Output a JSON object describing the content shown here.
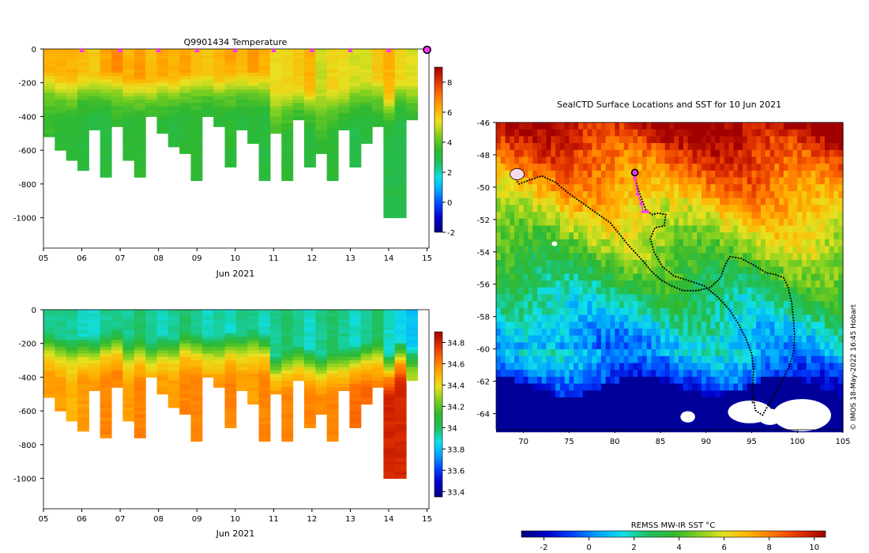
{
  "colors": {
    "jet": [
      "#00007f",
      "#0000c8",
      "#0040ff",
      "#00a0ff",
      "#10e0e8",
      "#20c060",
      "#30b830",
      "#80d020",
      "#e8e020",
      "#ffb000",
      "#ff7000",
      "#e03000",
      "#a00000"
    ],
    "float_marker": "#ff30ff",
    "track": "#000000",
    "land": "#ffffff"
  },
  "chart_data": [
    {
      "id": "temperature",
      "type": "heatmap",
      "title": "Q9901434  Temperature",
      "xlabel": "Jun 2021",
      "ylabel": "",
      "xlim": [
        5,
        15.05
      ],
      "ylim": [
        -1180,
        0
      ],
      "xticks": [
        "05",
        "06",
        "07",
        "08",
        "09",
        "10",
        "11",
        "12",
        "13",
        "14",
        "15"
      ],
      "yticks": [
        0,
        -200,
        -400,
        -600,
        -800,
        -1000
      ],
      "colorbar": {
        "range": [
          -2,
          9
        ],
        "ticks": [
          -2,
          0,
          2,
          4,
          6,
          8
        ]
      },
      "profile_markers_x": [
        6,
        7,
        8,
        9,
        10,
        11,
        12,
        13,
        14
      ],
      "last_marker_x": 15,
      "surface": [
        6.2,
        6.2,
        6.2,
        6.0,
        5.8,
        6.4,
        6.8,
        6.2,
        6.6,
        6.0,
        6.4,
        6.2,
        6.5,
        6.0,
        5.8,
        6.2,
        6.4,
        6.0,
        6.6,
        6.2,
        5.4,
        5.6,
        5.8,
        6.2,
        5.0,
        5.6,
        5.4,
        5.2,
        5.2,
        5.8,
        6.2,
        5.6,
        5.2
      ],
      "deep": [
        3.6,
        3.4,
        3.4,
        3.2,
        3.0,
        3.2,
        3.6,
        3.4,
        3.4,
        3.2,
        3.4,
        3.2,
        3.4,
        3.4,
        3.2,
        3.2,
        3.4,
        3.2,
        3.4,
        3.2,
        3.6,
        3.4,
        3.2,
        3.2,
        3.6,
        3.4,
        3.2,
        3.0,
        3.2,
        3.4,
        3.0,
        3.0,
        3.2
      ],
      "mixed_depth": [
        120,
        150,
        160,
        140,
        150,
        130,
        110,
        170,
        150,
        180,
        140,
        160,
        120,
        130,
        140,
        150,
        120,
        130,
        110,
        130,
        260,
        230,
        200,
        220,
        260,
        230,
        220,
        200,
        180,
        160,
        250,
        170,
        200
      ],
      "profile_depth": [
        520,
        600,
        660,
        720,
        480,
        760,
        450,
        650,
        760,
        400,
        490,
        580,
        620,
        780,
        400,
        460,
        700,
        480,
        560,
        780,
        500,
        770,
        420,
        690,
        620,
        770,
        470,
        700,
        560,
        460,
        1000,
        1000,
        410
      ]
    },
    {
      "id": "salinity",
      "type": "heatmap",
      "title": "",
      "xlabel": "Jun 2021",
      "ylabel": "",
      "xlim": [
        5,
        15.05
      ],
      "ylim": [
        -1180,
        0
      ],
      "xticks": [
        "05",
        "06",
        "07",
        "08",
        "09",
        "10",
        "11",
        "12",
        "13",
        "14",
        "15"
      ],
      "yticks": [
        0,
        -200,
        -400,
        -600,
        -800,
        -1000
      ],
      "colorbar": {
        "range": [
          33.35,
          34.9
        ],
        "ticks": [
          33.4,
          33.6,
          33.8,
          34,
          34.2,
          34.4,
          34.6,
          34.8
        ]
      },
      "surface": [
        33.95,
        33.95,
        33.95,
        33.9,
        33.9,
        33.95,
        33.95,
        33.95,
        34.0,
        33.95,
        33.9,
        33.95,
        34.0,
        33.95,
        33.9,
        33.95,
        33.9,
        33.95,
        33.95,
        33.9,
        33.95,
        34.0,
        33.95,
        33.9,
        33.95,
        34.0,
        33.95,
        33.9,
        33.95,
        34.0,
        33.9,
        33.85,
        33.8
      ],
      "deep": [
        34.55,
        34.55,
        34.5,
        34.55,
        34.55,
        34.6,
        34.6,
        34.55,
        34.6,
        34.55,
        34.55,
        34.55,
        34.6,
        34.6,
        34.55,
        34.55,
        34.6,
        34.55,
        34.55,
        34.6,
        34.6,
        34.6,
        34.6,
        34.6,
        34.6,
        34.6,
        34.6,
        34.65,
        34.65,
        34.6,
        34.8,
        34.8,
        34.4
      ],
      "mixed_depth": [
        120,
        150,
        160,
        140,
        150,
        130,
        110,
        170,
        150,
        180,
        140,
        160,
        120,
        130,
        140,
        150,
        120,
        130,
        110,
        130,
        260,
        230,
        200,
        220,
        260,
        230,
        220,
        200,
        180,
        160,
        250,
        170,
        200
      ],
      "profile_depth": [
        520,
        600,
        660,
        720,
        480,
        760,
        450,
        650,
        760,
        400,
        490,
        580,
        620,
        780,
        400,
        460,
        700,
        480,
        560,
        780,
        500,
        770,
        420,
        690,
        620,
        770,
        470,
        700,
        560,
        460,
        1000,
        1000,
        410
      ]
    },
    {
      "id": "sst_map",
      "type": "heatmap",
      "title": "SealCTD Surface Locations and SST for 10 Jun 2021",
      "xlabel": "",
      "ylabel": "",
      "xlim": [
        67,
        105
      ],
      "ylim": [
        -65,
        -46
      ],
      "xticks": [
        70,
        75,
        80,
        85,
        90,
        95,
        100,
        105
      ],
      "yticks": [
        -46,
        -48,
        -50,
        -52,
        -54,
        -56,
        -58,
        -60,
        -62,
        -64
      ],
      "colorbar": {
        "label": "REMSS MW-IR SST °C",
        "range": [
          -3,
          10.5
        ],
        "ticks": [
          -2,
          0,
          2,
          4,
          6,
          8,
          10
        ]
      },
      "credit": "© IMOS 18-May-2022 16:45 Hobart",
      "track": [
        [
          68.8,
          -49.2
        ],
        [
          69.5,
          -49.8
        ],
        [
          70.5,
          -49.6
        ],
        [
          72,
          -49.3
        ],
        [
          73.5,
          -49.7
        ],
        [
          75,
          -50.4
        ],
        [
          76.5,
          -51
        ],
        [
          78,
          -51.6
        ],
        [
          79.5,
          -52.2
        ],
        [
          80.5,
          -52.9
        ],
        [
          81.5,
          -53.6
        ],
        [
          82.5,
          -54.2
        ],
        [
          83.3,
          -54.7
        ],
        [
          84,
          -55.2
        ],
        [
          85,
          -55.7
        ],
        [
          86.2,
          -56.1
        ],
        [
          87.5,
          -56.4
        ],
        [
          89,
          -56.4
        ],
        [
          90.5,
          -56.2
        ],
        [
          91.6,
          -55.6
        ],
        [
          92.1,
          -54.8
        ],
        [
          92.6,
          -54.3
        ],
        [
          93.8,
          -54.4
        ],
        [
          95.2,
          -54.8
        ],
        [
          96.6,
          -55.3
        ],
        [
          97.6,
          -55.4
        ],
        [
          98.5,
          -55.6
        ],
        [
          99,
          -56.2
        ],
        [
          99.4,
          -57.2
        ],
        [
          99.6,
          -58.3
        ],
        [
          99.7,
          -59.2
        ],
        [
          99.6,
          -60.2
        ],
        [
          99.1,
          -61.1
        ],
        [
          98.3,
          -62
        ],
        [
          97.6,
          -62.7
        ],
        [
          96.8,
          -63.5
        ],
        [
          96.2,
          -64.1
        ],
        [
          95.4,
          -63.8
        ],
        [
          95.2,
          -63
        ]
      ],
      "track2": [
        [
          82.2,
          -49.4
        ],
        [
          82.6,
          -50.2
        ],
        [
          83,
          -50.8
        ],
        [
          83.4,
          -51.4
        ],
        [
          84.1,
          -51.7
        ],
        [
          84.8,
          -51.6
        ],
        [
          85.6,
          -51.7
        ],
        [
          85.4,
          -52.4
        ],
        [
          84.4,
          -52.5
        ],
        [
          83.9,
          -53.2
        ],
        [
          84.3,
          -54
        ],
        [
          85.2,
          -54.9
        ],
        [
          86.5,
          -55.5
        ],
        [
          88.2,
          -55.8
        ],
        [
          89.8,
          -56.1
        ],
        [
          91.3,
          -56.8
        ],
        [
          92.6,
          -57.6
        ],
        [
          93.6,
          -58.5
        ],
        [
          94.4,
          -59.4
        ],
        [
          95,
          -60.3
        ],
        [
          95.2,
          -61.3
        ],
        [
          95.1,
          -62.3
        ],
        [
          95.1,
          -63.4
        ]
      ],
      "recent": [
        [
          82.2,
          -49.4
        ],
        [
          82.5,
          -50.4
        ],
        [
          82.9,
          -51
        ],
        [
          83.1,
          -51.5
        ],
        [
          83.6,
          -51.5
        ]
      ],
      "latest": [
        82.2,
        -49.1
      ]
    }
  ]
}
